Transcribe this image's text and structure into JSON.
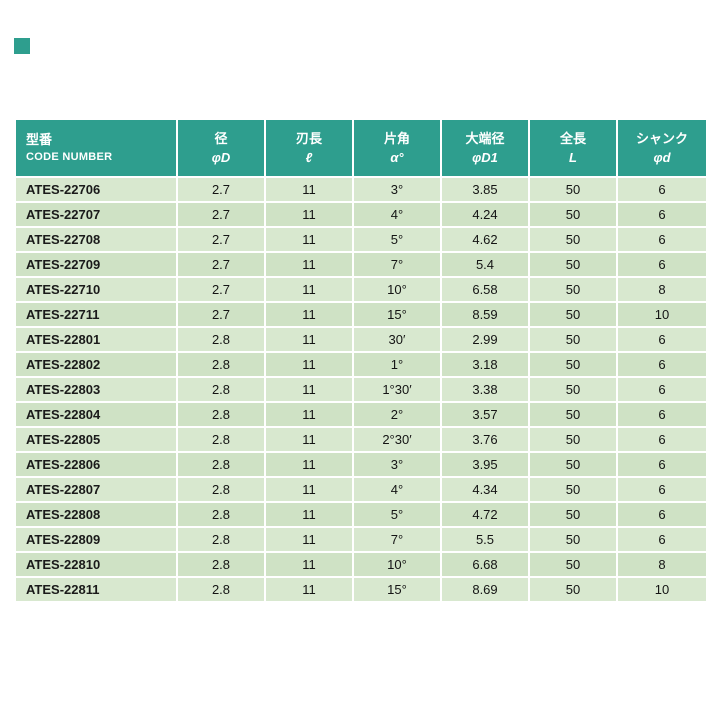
{
  "colors": {
    "page_bg": "#ffffff",
    "header_bg": "#2e9e8e",
    "header_text": "#ffffff",
    "row_light": "#d8e8cf",
    "row_dark": "#cfe2c5",
    "body_text": "#141414",
    "gridline": "#ffffff"
  },
  "table": {
    "header": {
      "columns": [
        {
          "jp": "型番",
          "sub": "CODE NUMBER"
        },
        {
          "jp": "径",
          "sub": "φD"
        },
        {
          "jp": "刃長",
          "sub": "ℓ"
        },
        {
          "jp": "片角",
          "sub": "α°"
        },
        {
          "jp": "大端径",
          "sub": "φD1"
        },
        {
          "jp": "全長",
          "sub": "L"
        },
        {
          "jp": "シャンク",
          "sub": "φd"
        }
      ]
    },
    "rows": [
      [
        "ATES-22706",
        "2.7",
        "11",
        "3°",
        "3.85",
        "50",
        "6"
      ],
      [
        "ATES-22707",
        "2.7",
        "11",
        "4°",
        "4.24",
        "50",
        "6"
      ],
      [
        "ATES-22708",
        "2.7",
        "11",
        "5°",
        "4.62",
        "50",
        "6"
      ],
      [
        "ATES-22709",
        "2.7",
        "11",
        "7°",
        "5.4",
        "50",
        "6"
      ],
      [
        "ATES-22710",
        "2.7",
        "11",
        "10°",
        "6.58",
        "50",
        "8"
      ],
      [
        "ATES-22711",
        "2.7",
        "11",
        "15°",
        "8.59",
        "50",
        "10"
      ],
      [
        "ATES-22801",
        "2.8",
        "11",
        "30′",
        "2.99",
        "50",
        "6"
      ],
      [
        "ATES-22802",
        "2.8",
        "11",
        "1°",
        "3.18",
        "50",
        "6"
      ],
      [
        "ATES-22803",
        "2.8",
        "11",
        "1°30′",
        "3.38",
        "50",
        "6"
      ],
      [
        "ATES-22804",
        "2.8",
        "11",
        "2°",
        "3.57",
        "50",
        "6"
      ],
      [
        "ATES-22805",
        "2.8",
        "11",
        "2°30′",
        "3.76",
        "50",
        "6"
      ],
      [
        "ATES-22806",
        "2.8",
        "11",
        "3°",
        "3.95",
        "50",
        "6"
      ],
      [
        "ATES-22807",
        "2.8",
        "11",
        "4°",
        "4.34",
        "50",
        "6"
      ],
      [
        "ATES-22808",
        "2.8",
        "11",
        "5°",
        "4.72",
        "50",
        "6"
      ],
      [
        "ATES-22809",
        "2.8",
        "11",
        "7°",
        "5.5",
        "50",
        "6"
      ],
      [
        "ATES-22810",
        "2.8",
        "11",
        "10°",
        "6.68",
        "50",
        "8"
      ],
      [
        "ATES-22811",
        "2.8",
        "11",
        "15°",
        "8.69",
        "50",
        "10"
      ]
    ]
  }
}
